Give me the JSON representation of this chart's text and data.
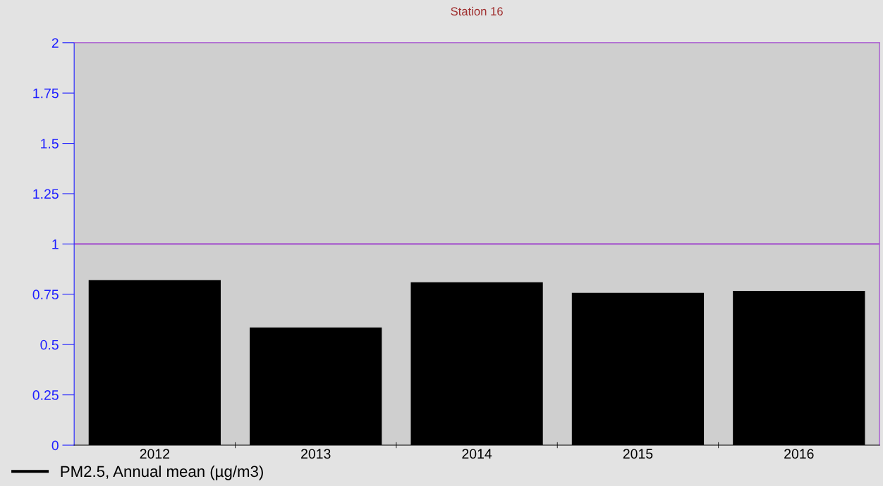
{
  "chart_data": {
    "type": "bar",
    "title": "Station 16",
    "categories": [
      "2012",
      "2013",
      "2014",
      "2015",
      "2016"
    ],
    "series": [
      {
        "name": "PM2.5, Annual mean (µg/m3)",
        "color": "#000000",
        "values": [
          0.82,
          0.585,
          0.81,
          0.757,
          0.767
        ]
      }
    ],
    "ylim": [
      0,
      2
    ],
    "yticks": [
      0,
      0.25,
      0.5,
      0.75,
      1,
      1.25,
      1.5,
      1.75,
      2
    ],
    "ref_lines": [
      {
        "axis": "y",
        "value": 1,
        "label": null,
        "color": "#9933cc"
      }
    ],
    "grid": false,
    "legend": "bottom left"
  }
}
